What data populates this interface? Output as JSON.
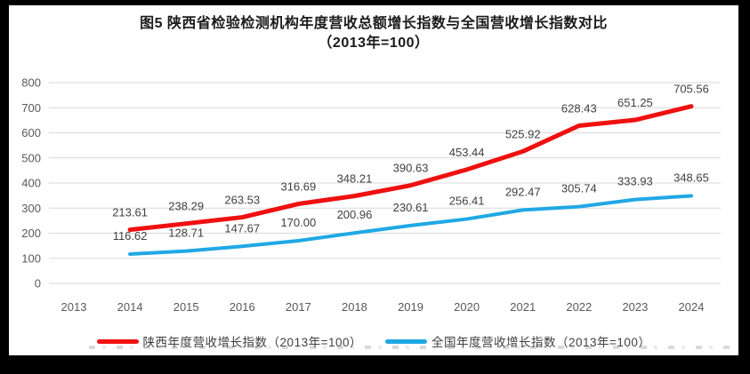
{
  "figure": {
    "title_line1": "图5  陕西省检验检测机构年度营收总额增长指数与全国营收增长指数对比",
    "title_line2": "（2013年=100）"
  },
  "chart_data": {
    "type": "line",
    "title": "图5 陕西省检验检测机构年度营收总额增长指数与全国营收增长指数对比（2013年=100）",
    "categories": [
      "2013",
      "2014",
      "2015",
      "2016",
      "2017",
      "2018",
      "2019",
      "2020",
      "2021",
      "2022",
      "2023",
      "2024"
    ],
    "ylim": [
      0,
      800
    ],
    "yticks": [
      "0",
      "100",
      "200",
      "300",
      "400",
      "500",
      "600",
      "700",
      "800"
    ],
    "grid": "horizontal",
    "legend_position": "bottom",
    "colors": {
      "grid_line": "#d9d9d9",
      "axis_tick_label": "#595959",
      "data_label": "#404040",
      "series_shaanxi": "#ef1010",
      "series_national": "#20a8e4"
    },
    "series": [
      {
        "name": "陕西年度营收增长指数（2013年=100）",
        "color": "#ef1010",
        "start_category": "2014",
        "values": [
          "213.61",
          "238.29",
          "263.53",
          "316.69",
          "348.21",
          "390.63",
          "453.44",
          "525.92",
          "628.43",
          "651.25",
          "705.56"
        ]
      },
      {
        "name": "全国年度营收增长指数（2013年=100）",
        "color": "#20a8e4",
        "start_category": "2014",
        "values": [
          "116.62",
          "128.71",
          "147.67",
          "170.00",
          "200.96",
          "230.61",
          "256.41",
          "292.47",
          "305.74",
          "333.93",
          "348.65"
        ]
      }
    ]
  }
}
